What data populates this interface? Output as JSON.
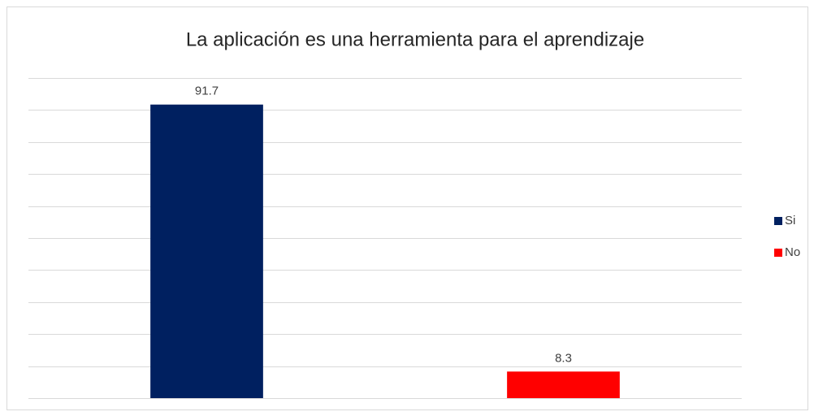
{
  "chart_data": {
    "type": "bar",
    "title": "La aplicación es una herramienta para el aprendizaje",
    "categories": [
      null
    ],
    "series": [
      {
        "name": "Si",
        "color": "#002060",
        "values": [
          91.7
        ]
      },
      {
        "name": "No",
        "color": "#ff0000",
        "values": [
          8.3
        ]
      }
    ],
    "ylim": [
      0,
      100
    ],
    "yticks": [
      0,
      10,
      20,
      30,
      40,
      50,
      60,
      70,
      80,
      90,
      100
    ],
    "grid": true,
    "legend": "right"
  }
}
